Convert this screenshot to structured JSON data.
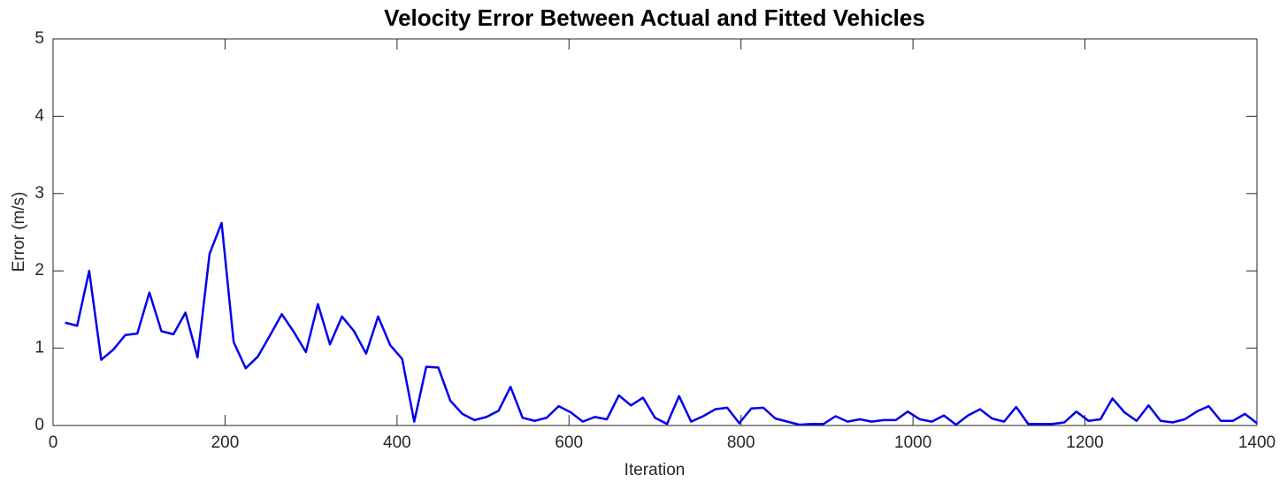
{
  "chart_data": {
    "type": "line",
    "title": "Velocity Error Between Actual and Fitted Vehicles",
    "xlabel": "Iteration",
    "ylabel": "Error (m/s)",
    "x": [
      14,
      28,
      42,
      56,
      70,
      84,
      98,
      112,
      126,
      140,
      154,
      168,
      182,
      196,
      210,
      224,
      238,
      252,
      266,
      280,
      294,
      308,
      322,
      336,
      350,
      364,
      378,
      392,
      406,
      420,
      434,
      448,
      462,
      476,
      490,
      504,
      518,
      532,
      546,
      560,
      574,
      588,
      602,
      616,
      630,
      644,
      658,
      672,
      686,
      700,
      714,
      728,
      742,
      756,
      770,
      784,
      798,
      812,
      826,
      840,
      854,
      868,
      882,
      896,
      910,
      924,
      938,
      952,
      966,
      980,
      994,
      1008,
      1022,
      1036,
      1050,
      1064,
      1078,
      1092,
      1106,
      1120,
      1134,
      1148,
      1162,
      1176,
      1190,
      1204,
      1218,
      1232,
      1246,
      1260,
      1274,
      1288,
      1302,
      1316,
      1330,
      1344,
      1358,
      1372,
      1386,
      1400
    ],
    "series": [
      {
        "name": "Velocity error",
        "color": "#0000ee",
        "values": [
          1.33,
          1.29,
          2.0,
          0.85,
          0.98,
          1.17,
          1.19,
          1.72,
          1.22,
          1.18,
          1.46,
          0.88,
          2.22,
          2.62,
          1.08,
          0.74,
          0.89,
          1.16,
          1.44,
          1.21,
          0.95,
          1.57,
          1.05,
          1.41,
          1.22,
          0.93,
          1.41,
          1.04,
          0.86,
          0.05,
          0.76,
          0.75,
          0.32,
          0.15,
          0.07,
          0.11,
          0.19,
          0.5,
          0.1,
          0.06,
          0.1,
          0.25,
          0.17,
          0.05,
          0.11,
          0.08,
          0.39,
          0.26,
          0.36,
          0.1,
          0.02,
          0.38,
          0.05,
          0.12,
          0.21,
          0.23,
          0.03,
          0.22,
          0.23,
          0.09,
          0.05,
          0.01,
          0.02,
          0.02,
          0.12,
          0.05,
          0.08,
          0.05,
          0.07,
          0.07,
          0.18,
          0.08,
          0.05,
          0.13,
          0.01,
          0.13,
          0.21,
          0.09,
          0.05,
          0.24,
          0.02,
          0.02,
          0.02,
          0.04,
          0.18,
          0.06,
          0.08,
          0.35,
          0.17,
          0.06,
          0.26,
          0.06,
          0.04,
          0.08,
          0.18,
          0.25,
          0.06,
          0.06,
          0.15,
          0.03
        ]
      }
    ],
    "xlim": [
      0,
      1400
    ],
    "xticks": [
      0,
      200,
      400,
      600,
      800,
      1000,
      1200,
      1400
    ],
    "ylim": [
      0,
      5
    ],
    "yticks": [
      0,
      1,
      2,
      3,
      4,
      5
    ],
    "grid": false
  }
}
